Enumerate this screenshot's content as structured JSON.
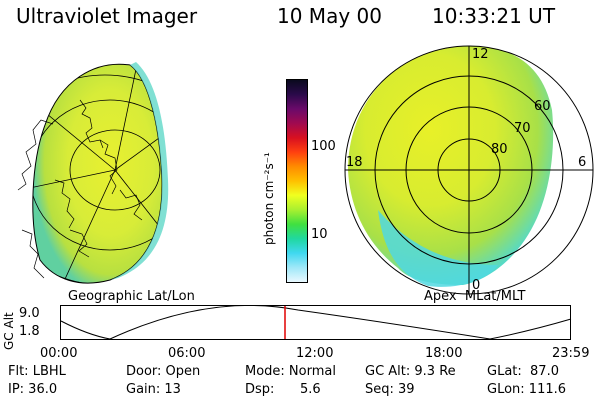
{
  "header": {
    "instrument": "Ultraviolet Imager",
    "date": "10 May 00",
    "time": "10:33:21 UT"
  },
  "colorbar": {
    "unit_label": "photon cm⁻²s⁻¹",
    "ticks": [
      "100",
      "10"
    ],
    "colors": [
      "#0a0a1e",
      "#2a0a4a",
      "#6a0a6a",
      "#a00a50",
      "#d81020",
      "#ff4010",
      "#ff8c00",
      "#ffc000",
      "#f0ff20",
      "#a8f030",
      "#40e040",
      "#20d8a0",
      "#40d8f0",
      "#a0e8f8",
      "#e8f8ff"
    ]
  },
  "left_panel": {
    "caption": "Geographic Lat/Lon"
  },
  "right_panel": {
    "caption": "Apex  MLat/MLT",
    "mlt_labels": [
      "12",
      "18",
      "6",
      "0"
    ],
    "lat_labels": [
      "60",
      "70",
      "80"
    ]
  },
  "orbit_plot": {
    "ylabel": "GC Alt",
    "y_ticks": [
      "9.0",
      "1.8"
    ],
    "x_ticks": [
      "00:00",
      "06:00",
      "12:00",
      "18:00",
      "23:59"
    ],
    "marker_time": "10:33:21"
  },
  "info": {
    "flt": "Flt: LBHL",
    "ip": "IP: 36.0",
    "door": "Door: Open",
    "gain": "Gain: 13",
    "mode": "Mode: Normal",
    "dsp_label": "Dsp:",
    "dsp_value": "5.6",
    "gc_alt": "GC Alt: 9.3 Re",
    "seq": "Seq: 39",
    "glat": "GLat:  87.0",
    "glon": "GLon: 111.6"
  }
}
